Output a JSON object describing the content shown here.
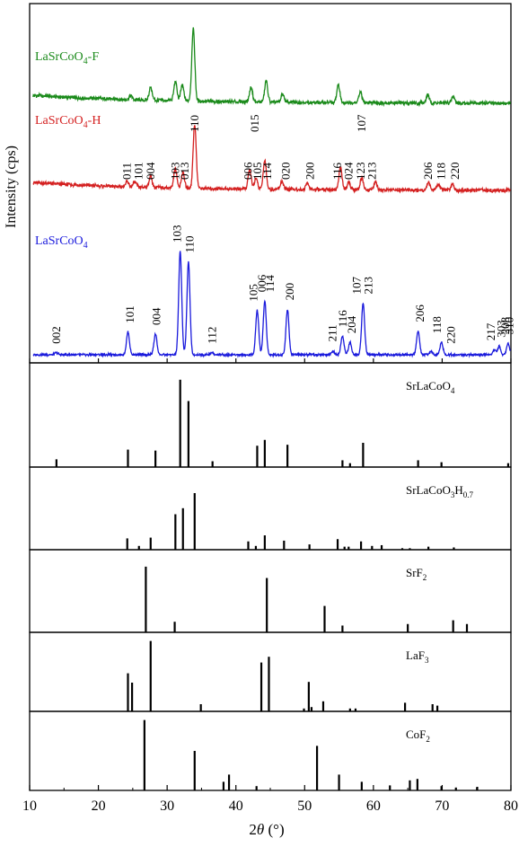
{
  "chart_data": {
    "type": "line",
    "xlabel_main": "2",
    "xlabel_theta": "θ",
    "xlabel_unit": " (°)",
    "ylabel": "Intensity (cps)",
    "xlim": [
      10,
      80
    ],
    "xticks": [
      10,
      20,
      30,
      40,
      50,
      60,
      70,
      80
    ],
    "colors": {
      "F": "#1a8a1a",
      "H": "#d42020",
      "P": "#1a1adc",
      "ref": "#000000"
    },
    "traces": [
      {
        "id": "F",
        "name_main": "LaSrCoO",
        "name_sub": "4",
        "name_suffix": "-F",
        "baseline": 0.1,
        "peaks": [
          [
            24.7,
            0.025
          ],
          [
            27.6,
            0.08
          ],
          [
            31.2,
            0.12
          ],
          [
            32.2,
            0.1
          ],
          [
            33.8,
            0.45
          ],
          [
            42.2,
            0.09
          ],
          [
            44.4,
            0.13
          ],
          [
            46.8,
            0.05
          ],
          [
            54.9,
            0.11
          ],
          [
            58.1,
            0.07
          ],
          [
            67.9,
            0.05
          ],
          [
            71.6,
            0.04
          ]
        ]
      },
      {
        "id": "H",
        "name_main": "LaSrCoO",
        "name_sub": "4",
        "name_suffix": "-H",
        "baseline": 0.08,
        "peaks": [
          [
            24.2,
            0.03
          ],
          [
            25.3,
            0.03
          ],
          [
            27.6,
            0.07
          ],
          [
            31.2,
            0.12
          ],
          [
            32.3,
            0.1
          ],
          [
            34.0,
            0.4
          ],
          [
            42.0,
            0.12
          ],
          [
            42.9,
            0.07
          ],
          [
            44.2,
            0.18
          ],
          [
            46.7,
            0.05
          ],
          [
            50.4,
            0.04
          ],
          [
            55.2,
            0.14
          ],
          [
            56.4,
            0.05
          ],
          [
            58.3,
            0.07
          ],
          [
            60.3,
            0.05
          ],
          [
            68.0,
            0.05
          ],
          [
            69.4,
            0.04
          ],
          [
            71.5,
            0.04
          ]
        ],
        "labels": [
          {
            "t": "011",
            "x": 24.2,
            "row": 1
          },
          {
            "t": "101",
            "x": 25.9,
            "row": 1
          },
          {
            "t": "004",
            "x": 27.6,
            "row": 1
          },
          {
            "t": "103",
            "x": 31.2,
            "row": 1
          },
          {
            "t": "013",
            "x": 32.6,
            "row": 1
          },
          {
            "t": "110",
            "x": 34.0,
            "row": 2
          },
          {
            "t": "006",
            "x": 41.8,
            "row": 1
          },
          {
            "t": "015",
            "x": 42.8,
            "row": 2
          },
          {
            "t": "105",
            "x": 43.2,
            "row": 1
          },
          {
            "t": "114",
            "x": 44.6,
            "row": 1
          },
          {
            "t": "020",
            "x": 47.3,
            "row": 1
          },
          {
            "t": "200",
            "x": 50.8,
            "row": 1
          },
          {
            "t": "116",
            "x": 54.8,
            "row": 1
          },
          {
            "t": "024",
            "x": 56.4,
            "row": 1
          },
          {
            "t": "107",
            "x": 58.3,
            "row": 2
          },
          {
            "t": "123",
            "x": 58.2,
            "row": 1
          },
          {
            "t": "213",
            "x": 59.8,
            "row": 1
          },
          {
            "t": "206",
            "x": 68.0,
            "row": 1
          },
          {
            "t": "118",
            "x": 69.9,
            "row": 1
          },
          {
            "t": "220",
            "x": 71.9,
            "row": 1
          }
        ]
      },
      {
        "id": "P",
        "name_main": "LaSrCoO",
        "name_sub": "4",
        "name_suffix": "",
        "baseline": 0.02,
        "peaks": [
          [
            13.9,
            0.02
          ],
          [
            24.3,
            0.22
          ],
          [
            28.3,
            0.2
          ],
          [
            31.9,
            1.0
          ],
          [
            33.1,
            0.9
          ],
          [
            36.5,
            0.02
          ],
          [
            43.1,
            0.43
          ],
          [
            44.2,
            0.52
          ],
          [
            47.5,
            0.44
          ],
          [
            54.1,
            0.04
          ],
          [
            55.5,
            0.18
          ],
          [
            56.6,
            0.12
          ],
          [
            58.5,
            0.5
          ],
          [
            66.5,
            0.23
          ],
          [
            68.4,
            0.03
          ],
          [
            69.9,
            0.12
          ],
          [
            77.6,
            0.05
          ],
          [
            78.3,
            0.08
          ],
          [
            79.6,
            0.11
          ]
        ],
        "labels": [
          {
            "t": "002",
            "x": 13.9
          },
          {
            "t": "101",
            "x": 24.6
          },
          {
            "t": "004",
            "x": 28.5
          },
          {
            "t": "103",
            "x": 31.5
          },
          {
            "t": "110",
            "x": 33.3
          },
          {
            "t": "112",
            "x": 36.6
          },
          {
            "t": "105",
            "x": 42.6
          },
          {
            "t": "006",
            "x": 43.8
          },
          {
            "t": "114",
            "x": 45.0
          },
          {
            "t": "200",
            "x": 47.9
          },
          {
            "t": "211",
            "x": 54.1
          },
          {
            "t": "116",
            "x": 55.6
          },
          {
            "t": "204",
            "x": 56.9
          },
          {
            "t": "107",
            "x": 57.6
          },
          {
            "t": "213",
            "x": 59.3
          },
          {
            "t": "206",
            "x": 66.8
          },
          {
            "t": "118",
            "x": 69.3
          },
          {
            "t": "220",
            "x": 71.3
          },
          {
            "t": "217",
            "x": 77.1
          },
          {
            "t": "303",
            "x": 78.6
          },
          {
            "t": "208",
            "x": 79.2
          },
          {
            "t": "310",
            "x": 79.8
          }
        ]
      }
    ],
    "reference_panels": [
      {
        "id": "SrLaCoO4",
        "label_parts": [
          [
            "SrLaCoO",
            ""
          ],
          [
            "4",
            "sub"
          ]
        ],
        "sticks": [
          [
            13.9,
            0.08
          ],
          [
            24.3,
            0.18
          ],
          [
            28.3,
            0.17
          ],
          [
            31.9,
            0.9
          ],
          [
            33.1,
            0.68
          ],
          [
            36.6,
            0.06
          ],
          [
            43.1,
            0.22
          ],
          [
            44.2,
            0.28
          ],
          [
            47.5,
            0.23
          ],
          [
            55.5,
            0.07
          ],
          [
            56.6,
            0.04
          ],
          [
            58.5,
            0.25
          ],
          [
            66.5,
            0.07
          ],
          [
            69.9,
            0.05
          ],
          [
            79.6,
            0.04
          ]
        ]
      },
      {
        "id": "SrLaCoO3H07",
        "label_parts": [
          [
            "SrLaCoO",
            ""
          ],
          [
            "3",
            "sub"
          ],
          [
            "H",
            ""
          ],
          [
            "0.7",
            "sub"
          ]
        ],
        "sticks": [
          [
            24.2,
            0.15
          ],
          [
            25.9,
            0.05
          ],
          [
            27.6,
            0.16
          ],
          [
            31.2,
            0.47
          ],
          [
            32.3,
            0.55
          ],
          [
            34.0,
            0.75
          ],
          [
            41.8,
            0.11
          ],
          [
            42.9,
            0.05
          ],
          [
            44.2,
            0.19
          ],
          [
            47.0,
            0.12
          ],
          [
            50.7,
            0.07
          ],
          [
            54.8,
            0.14
          ],
          [
            55.8,
            0.04
          ],
          [
            56.4,
            0.04
          ],
          [
            58.2,
            0.11
          ],
          [
            59.8,
            0.05
          ],
          [
            61.2,
            0.06
          ],
          [
            64.2,
            0.02
          ],
          [
            65.3,
            0.02
          ],
          [
            68.0,
            0.04
          ],
          [
            71.7,
            0.03
          ]
        ]
      },
      {
        "id": "SrF2",
        "label_parts": [
          [
            "SrF",
            ""
          ],
          [
            "2",
            "sub"
          ]
        ],
        "sticks": [
          [
            26.9,
            0.87
          ],
          [
            31.1,
            0.14
          ],
          [
            44.5,
            0.72
          ],
          [
            52.9,
            0.35
          ],
          [
            55.5,
            0.09
          ],
          [
            65.0,
            0.11
          ],
          [
            71.6,
            0.16
          ],
          [
            73.6,
            0.11
          ]
        ]
      },
      {
        "id": "LaF3",
        "label_parts": [
          [
            "LaF",
            ""
          ],
          [
            "3",
            "sub"
          ]
        ],
        "sticks": [
          [
            24.3,
            0.53
          ],
          [
            24.9,
            0.4
          ],
          [
            27.6,
            0.98
          ],
          [
            34.9,
            0.1
          ],
          [
            43.7,
            0.68
          ],
          [
            44.8,
            0.76
          ],
          [
            49.9,
            0.04
          ],
          [
            50.6,
            0.41
          ],
          [
            51.0,
            0.06
          ],
          [
            52.7,
            0.14
          ],
          [
            56.6,
            0.04
          ],
          [
            57.4,
            0.04
          ],
          [
            64.6,
            0.12
          ],
          [
            68.6,
            0.1
          ],
          [
            69.3,
            0.08
          ]
        ]
      },
      {
        "id": "CoF2",
        "label_parts": [
          [
            "CoF",
            ""
          ],
          [
            "2",
            "sub"
          ]
        ],
        "sticks": [
          [
            26.7,
            0.98
          ],
          [
            34.0,
            0.55
          ],
          [
            38.2,
            0.12
          ],
          [
            39.0,
            0.22
          ],
          [
            43.0,
            0.06
          ],
          [
            51.8,
            0.62
          ],
          [
            55.0,
            0.22
          ],
          [
            58.3,
            0.12
          ],
          [
            62.4,
            0.07
          ],
          [
            65.3,
            0.14
          ],
          [
            66.4,
            0.16
          ],
          [
            69.9,
            0.06
          ],
          [
            72.0,
            0.04
          ],
          [
            75.1,
            0.05
          ]
        ]
      }
    ]
  }
}
